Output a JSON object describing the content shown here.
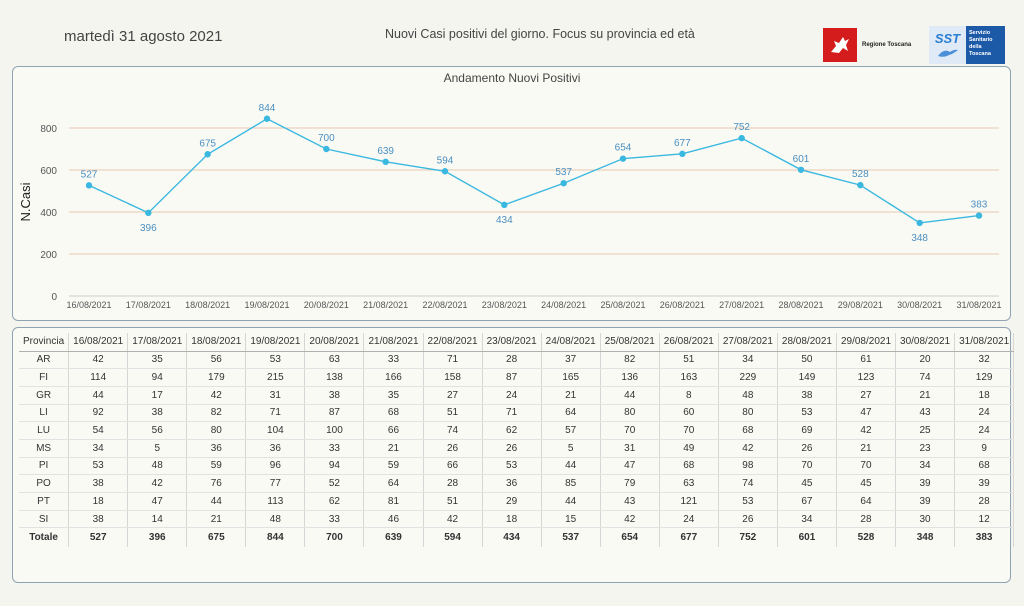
{
  "header": {
    "date": "martedì 31 agosto 2021",
    "subtitle": "Nuovi Casi positivi del giorno. Focus su provincia ed età",
    "logo_regione": "Regione Toscana",
    "logo_sst_short": "SST",
    "logo_sst_text": "Servizio Sanitario della Toscana"
  },
  "chart_data": {
    "type": "line",
    "title": "Andamento Nuovi Positivi",
    "ylabel": "N.Casi",
    "xlabel": "",
    "ylim": [
      0,
      900
    ],
    "yticks": [
      0,
      200,
      400,
      600,
      800
    ],
    "grid": true,
    "categories": [
      "16/08/2021",
      "17/08/2021",
      "18/08/2021",
      "19/08/2021",
      "20/08/2021",
      "21/08/2021",
      "22/08/2021",
      "23/08/2021",
      "24/08/2021",
      "25/08/2021",
      "26/08/2021",
      "27/08/2021",
      "28/08/2021",
      "29/08/2021",
      "30/08/2021",
      "31/08/2021"
    ],
    "values": [
      527,
      396,
      675,
      844,
      700,
      639,
      594,
      434,
      537,
      654,
      677,
      752,
      601,
      528,
      348,
      383
    ],
    "line_color": "#3bb8e0",
    "label_color": "#4a8fc0",
    "grid_color": "#e8c8b0"
  },
  "table": {
    "header_label": "Provincia",
    "dates": [
      "16/08/2021",
      "17/08/2021",
      "18/08/2021",
      "19/08/2021",
      "20/08/2021",
      "21/08/2021",
      "22/08/2021",
      "23/08/2021",
      "24/08/2021",
      "25/08/2021",
      "26/08/2021",
      "27/08/2021",
      "28/08/2021",
      "29/08/2021",
      "30/08/2021",
      "31/08/2021"
    ],
    "rows": [
      {
        "name": "AR",
        "values": [
          42,
          35,
          56,
          53,
          63,
          33,
          71,
          28,
          37,
          82,
          51,
          34,
          50,
          61,
          20,
          32
        ]
      },
      {
        "name": "FI",
        "values": [
          114,
          94,
          179,
          215,
          138,
          166,
          158,
          87,
          165,
          136,
          163,
          229,
          149,
          123,
          74,
          129
        ]
      },
      {
        "name": "GR",
        "values": [
          44,
          17,
          42,
          31,
          38,
          35,
          27,
          24,
          21,
          44,
          8,
          48,
          38,
          27,
          21,
          18
        ]
      },
      {
        "name": "LI",
        "values": [
          92,
          38,
          82,
          71,
          87,
          68,
          51,
          71,
          64,
          80,
          60,
          80,
          53,
          47,
          43,
          24
        ]
      },
      {
        "name": "LU",
        "values": [
          54,
          56,
          80,
          104,
          100,
          66,
          74,
          62,
          57,
          70,
          70,
          68,
          69,
          42,
          25,
          24
        ]
      },
      {
        "name": "MS",
        "values": [
          34,
          5,
          36,
          36,
          33,
          21,
          26,
          26,
          5,
          31,
          49,
          42,
          26,
          21,
          23,
          9
        ]
      },
      {
        "name": "PI",
        "values": [
          53,
          48,
          59,
          96,
          94,
          59,
          66,
          53,
          44,
          47,
          68,
          98,
          70,
          70,
          34,
          68
        ]
      },
      {
        "name": "PO",
        "values": [
          38,
          42,
          76,
          77,
          52,
          64,
          28,
          36,
          85,
          79,
          63,
          74,
          45,
          45,
          39,
          39
        ]
      },
      {
        "name": "PT",
        "values": [
          18,
          47,
          44,
          113,
          62,
          81,
          51,
          29,
          44,
          43,
          121,
          53,
          67,
          64,
          39,
          28
        ]
      },
      {
        "name": "SI",
        "values": [
          38,
          14,
          21,
          48,
          33,
          46,
          42,
          18,
          15,
          42,
          24,
          26,
          34,
          28,
          30,
          12
        ]
      }
    ],
    "total_label": "Totale",
    "totals": [
      527,
      396,
      675,
      844,
      700,
      639,
      594,
      434,
      537,
      654,
      677,
      752,
      601,
      528,
      348,
      383
    ]
  }
}
